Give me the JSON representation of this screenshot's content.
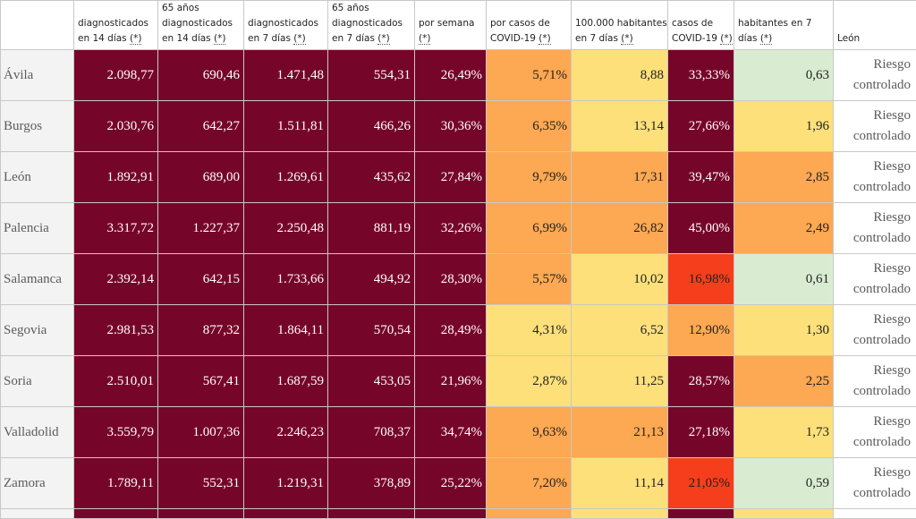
{
  "colors": {
    "very_high": "#76052a",
    "high_red": "#f53e1c",
    "high": "#fda852",
    "medium": "#fde07a",
    "low": "#d9ecd2",
    "controlled": "#ffffff"
  },
  "headers": [
    {
      "text": "",
      "ast": ""
    },
    {
      "text": "diagnosticados en 14 días ",
      "ast": "(*)"
    },
    {
      "text": "65 años diagnosticados en 14 días ",
      "ast": "(*)"
    },
    {
      "text": "diagnosticados en 7 días ",
      "ast": "(*)"
    },
    {
      "text": "65 años diagnosticados en 7 días ",
      "ast": "(*)"
    },
    {
      "text": "por semana ",
      "ast": "(*)"
    },
    {
      "text": "por casos de COVID-19 ",
      "ast": "(*)"
    },
    {
      "text": "100.000 habitantes en 7 días ",
      "ast": "(*)"
    },
    {
      "text": "casos de COVID-19 ",
      "ast": "(*)"
    },
    {
      "text": "habitantes en 7 días ",
      "ast": "(*)"
    },
    {
      "text": "León",
      "ast": ""
    }
  ],
  "rows": [
    {
      "name": "Ávila",
      "cells": [
        {
          "v": "2.098,77",
          "c": "very_high"
        },
        {
          "v": "690,46",
          "c": "very_high"
        },
        {
          "v": "1.471,48",
          "c": "very_high"
        },
        {
          "v": "554,31",
          "c": "very_high"
        },
        {
          "v": "26,49%",
          "c": "very_high"
        },
        {
          "v": "5,71%",
          "c": "high"
        },
        {
          "v": "8,88",
          "c": "medium"
        },
        {
          "v": "33,33%",
          "c": "very_high"
        },
        {
          "v": "0,63",
          "c": "low"
        }
      ],
      "risk": [
        "Riesgo",
        "controlado"
      ]
    },
    {
      "name": "Burgos",
      "cells": [
        {
          "v": "2.030,76",
          "c": "very_high"
        },
        {
          "v": "642,27",
          "c": "very_high"
        },
        {
          "v": "1.511,81",
          "c": "very_high"
        },
        {
          "v": "466,26",
          "c": "very_high"
        },
        {
          "v": "30,36%",
          "c": "very_high"
        },
        {
          "v": "6,35%",
          "c": "high"
        },
        {
          "v": "13,14",
          "c": "medium"
        },
        {
          "v": "27,66%",
          "c": "very_high"
        },
        {
          "v": "1,96",
          "c": "medium"
        }
      ],
      "risk": [
        "Riesgo",
        "controlado"
      ]
    },
    {
      "name": "León",
      "cells": [
        {
          "v": "1.892,91",
          "c": "very_high"
        },
        {
          "v": "689,00",
          "c": "very_high"
        },
        {
          "v": "1.269,61",
          "c": "very_high"
        },
        {
          "v": "435,62",
          "c": "very_high"
        },
        {
          "v": "27,84%",
          "c": "very_high"
        },
        {
          "v": "9,79%",
          "c": "high"
        },
        {
          "v": "17,31",
          "c": "high"
        },
        {
          "v": "39,47%",
          "c": "very_high"
        },
        {
          "v": "2,85",
          "c": "high"
        }
      ],
      "risk": [
        "Riesgo",
        "controlado"
      ]
    },
    {
      "name": "Palencia",
      "cells": [
        {
          "v": "3.317,72",
          "c": "very_high"
        },
        {
          "v": "1.227,37",
          "c": "very_high"
        },
        {
          "v": "2.250,48",
          "c": "very_high"
        },
        {
          "v": "881,19",
          "c": "very_high"
        },
        {
          "v": "32,26%",
          "c": "very_high"
        },
        {
          "v": "6,99%",
          "c": "high"
        },
        {
          "v": "26,82",
          "c": "high"
        },
        {
          "v": "45,00%",
          "c": "very_high"
        },
        {
          "v": "2,49",
          "c": "high"
        }
      ],
      "risk": [
        "Riesgo",
        "controlado"
      ]
    },
    {
      "name": "Salamanca",
      "cells": [
        {
          "v": "2.392,14",
          "c": "very_high"
        },
        {
          "v": "642,15",
          "c": "very_high"
        },
        {
          "v": "1.733,66",
          "c": "very_high"
        },
        {
          "v": "494,92",
          "c": "very_high"
        },
        {
          "v": "28,30%",
          "c": "very_high"
        },
        {
          "v": "5,57%",
          "c": "high"
        },
        {
          "v": "10,02",
          "c": "medium"
        },
        {
          "v": "16,98%",
          "c": "high_red"
        },
        {
          "v": "0,61",
          "c": "low"
        }
      ],
      "risk": [
        "Riesgo",
        "controlado"
      ]
    },
    {
      "name": "Segovia",
      "cells": [
        {
          "v": "2.981,53",
          "c": "very_high"
        },
        {
          "v": "877,32",
          "c": "very_high"
        },
        {
          "v": "1.864,11",
          "c": "very_high"
        },
        {
          "v": "570,54",
          "c": "very_high"
        },
        {
          "v": "28,49%",
          "c": "very_high"
        },
        {
          "v": "4,31%",
          "c": "medium"
        },
        {
          "v": "6,52",
          "c": "medium"
        },
        {
          "v": "12,90%",
          "c": "high"
        },
        {
          "v": "1,30",
          "c": "medium"
        }
      ],
      "risk": [
        "Riesgo",
        "controlado"
      ]
    },
    {
      "name": "Soria",
      "cells": [
        {
          "v": "2.510,01",
          "c": "very_high"
        },
        {
          "v": "567,41",
          "c": "very_high"
        },
        {
          "v": "1.687,59",
          "c": "very_high"
        },
        {
          "v": "453,05",
          "c": "very_high"
        },
        {
          "v": "21,96%",
          "c": "very_high"
        },
        {
          "v": "2,87%",
          "c": "medium"
        },
        {
          "v": "11,25",
          "c": "medium"
        },
        {
          "v": "28,57%",
          "c": "very_high"
        },
        {
          "v": "2,25",
          "c": "high"
        }
      ],
      "risk": [
        "Riesgo",
        "controlado"
      ]
    },
    {
      "name": "Valladolid",
      "cells": [
        {
          "v": "3.559,79",
          "c": "very_high"
        },
        {
          "v": "1.007,36",
          "c": "very_high"
        },
        {
          "v": "2.246,23",
          "c": "very_high"
        },
        {
          "v": "708,37",
          "c": "very_high"
        },
        {
          "v": "34,74%",
          "c": "very_high"
        },
        {
          "v": "9,63%",
          "c": "high"
        },
        {
          "v": "21,13",
          "c": "high"
        },
        {
          "v": "27,18%",
          "c": "very_high"
        },
        {
          "v": "1,73",
          "c": "medium"
        }
      ],
      "risk": [
        "Riesgo",
        "controlado"
      ]
    },
    {
      "name": "Zamora",
      "cells": [
        {
          "v": "1.789,11",
          "c": "very_high"
        },
        {
          "v": "552,31",
          "c": "very_high"
        },
        {
          "v": "1.219,31",
          "c": "very_high"
        },
        {
          "v": "378,89",
          "c": "very_high"
        },
        {
          "v": "25,22%",
          "c": "very_high"
        },
        {
          "v": "7,20%",
          "c": "high"
        },
        {
          "v": "11,14",
          "c": "medium"
        },
        {
          "v": "21,05%",
          "c": "high_red"
        },
        {
          "v": "0,59",
          "c": "low"
        }
      ],
      "risk": [
        "Riesgo",
        "controlado"
      ]
    }
  ],
  "partial_row": {
    "colors": [
      "very_high",
      "very_high",
      "very_high",
      "very_high",
      "very_high",
      "high",
      "medium",
      "very_high",
      "medium"
    ]
  }
}
